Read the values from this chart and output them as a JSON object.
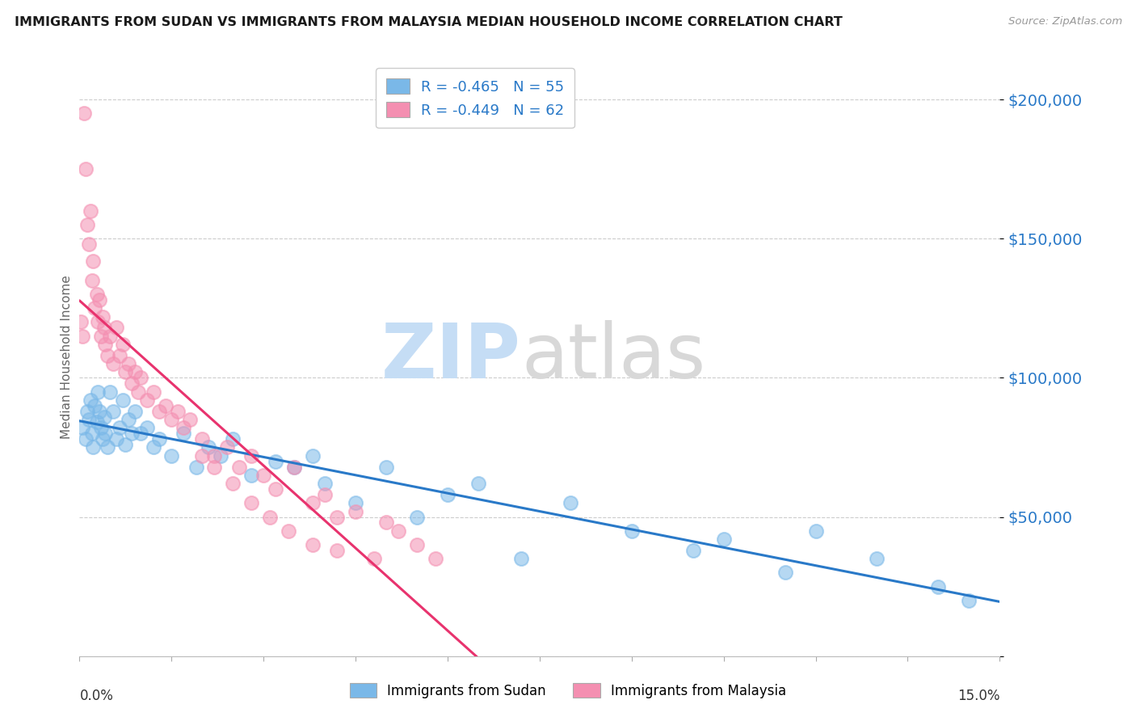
{
  "title": "IMMIGRANTS FROM SUDAN VS IMMIGRANTS FROM MALAYSIA MEDIAN HOUSEHOLD INCOME CORRELATION CHART",
  "source": "Source: ZipAtlas.com",
  "ylabel": "Median Household Income",
  "xlim": [
    0.0,
    15.0
  ],
  "ylim": [
    0,
    215000
  ],
  "sudan_color": "#7ab8e8",
  "malaysia_color": "#f48fb1",
  "sudan_line_color": "#2979c8",
  "malaysia_line_color": "#e8336e",
  "legend_R_color": "#2979c8",
  "legend_N_color": "#2979c8",
  "ytick_color": "#2979c8",
  "sudan_R": -0.465,
  "sudan_N": 55,
  "malaysia_R": -0.449,
  "malaysia_N": 62,
  "grid_color": "#cccccc",
  "watermark_zip_color": "#c5ddf5",
  "watermark_atlas_color": "#d8d8d8",
  "sudan_x": [
    0.05,
    0.1,
    0.12,
    0.15,
    0.18,
    0.2,
    0.22,
    0.25,
    0.28,
    0.3,
    0.32,
    0.35,
    0.38,
    0.4,
    0.42,
    0.45,
    0.5,
    0.55,
    0.6,
    0.65,
    0.7,
    0.75,
    0.8,
    0.85,
    0.9,
    1.0,
    1.1,
    1.2,
    1.3,
    1.5,
    1.7,
    1.9,
    2.1,
    2.3,
    2.5,
    2.8,
    3.2,
    3.5,
    3.8,
    4.0,
    4.5,
    5.0,
    5.5,
    6.0,
    6.5,
    7.2,
    8.0,
    9.0,
    10.0,
    10.5,
    11.5,
    12.0,
    13.0,
    14.0,
    14.5
  ],
  "sudan_y": [
    82000,
    78000,
    88000,
    85000,
    92000,
    80000,
    75000,
    90000,
    84000,
    95000,
    88000,
    82000,
    78000,
    86000,
    80000,
    75000,
    95000,
    88000,
    78000,
    82000,
    92000,
    76000,
    85000,
    80000,
    88000,
    80000,
    82000,
    75000,
    78000,
    72000,
    80000,
    68000,
    75000,
    72000,
    78000,
    65000,
    70000,
    68000,
    72000,
    62000,
    55000,
    68000,
    50000,
    58000,
    62000,
    35000,
    55000,
    45000,
    38000,
    42000,
    30000,
    45000,
    35000,
    25000,
    20000
  ],
  "malaysia_x": [
    0.02,
    0.05,
    0.08,
    0.1,
    0.12,
    0.15,
    0.18,
    0.2,
    0.22,
    0.25,
    0.28,
    0.3,
    0.32,
    0.35,
    0.38,
    0.4,
    0.42,
    0.45,
    0.5,
    0.55,
    0.6,
    0.65,
    0.7,
    0.75,
    0.8,
    0.85,
    0.9,
    0.95,
    1.0,
    1.1,
    1.2,
    1.3,
    1.4,
    1.5,
    1.6,
    1.7,
    1.8,
    2.0,
    2.2,
    2.4,
    2.6,
    2.8,
    3.0,
    3.2,
    3.5,
    3.8,
    4.0,
    4.2,
    4.5,
    5.0,
    5.2,
    5.5,
    5.8,
    2.0,
    2.2,
    2.5,
    2.8,
    3.1,
    3.4,
    3.8,
    4.2,
    4.8
  ],
  "malaysia_y": [
    120000,
    115000,
    195000,
    175000,
    155000,
    148000,
    160000,
    135000,
    142000,
    125000,
    130000,
    120000,
    128000,
    115000,
    122000,
    118000,
    112000,
    108000,
    115000,
    105000,
    118000,
    108000,
    112000,
    102000,
    105000,
    98000,
    102000,
    95000,
    100000,
    92000,
    95000,
    88000,
    90000,
    85000,
    88000,
    82000,
    85000,
    78000,
    72000,
    75000,
    68000,
    72000,
    65000,
    60000,
    68000,
    55000,
    58000,
    50000,
    52000,
    48000,
    45000,
    40000,
    35000,
    72000,
    68000,
    62000,
    55000,
    50000,
    45000,
    40000,
    38000,
    35000
  ]
}
